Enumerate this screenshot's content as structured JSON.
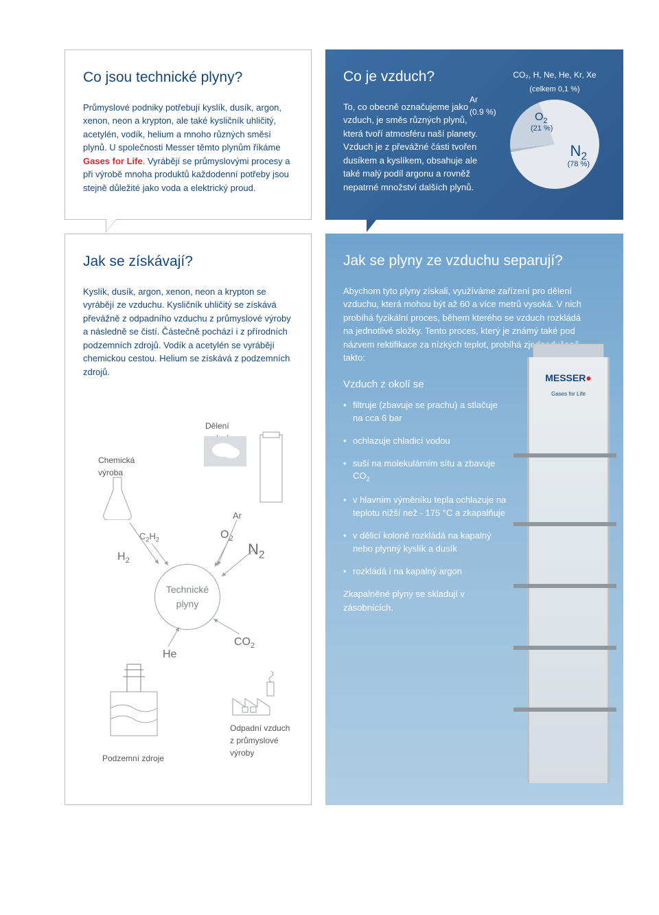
{
  "colors": {
    "brand_blue": "#14467a",
    "brand_red": "#d22a2f",
    "blue_grad_a": "#3b6ea3",
    "blue_grad_b": "#2e5a8c",
    "sky_a": "#6fa3cf",
    "sky_b": "#b0cde3",
    "border": "#b9bec2",
    "text_gray": "#555"
  },
  "box1": {
    "title": "Co jsou technické plyny?",
    "body_a": "Průmyslové podniky potřebují kyslík, dusík, argon, xenon, neon a krypton, ale také kysličník uhličitý, acetylén, vodík, helium a mnoho různých směsí plynů. U společnosti Messer těmto plynům říkáme ",
    "highlight": "Gases for Life",
    "body_b": ". Vyrábějí se průmyslovými procesy a při výrobě mnoha produktů každodenní potřeby jsou stejně důležité jako voda a elektrický proud."
  },
  "box2": {
    "title": "Co je vzduch?",
    "body": "To, co obecně označujeme jako vzduch, je směs různých plynů, která tvoří atmosféru naší planety. Vzduch je z převážné části tvořen dusíkem a kyslíkem, obsahuje ale také malý podíl argonu a rovněž nepatrné množství dalších plynů.",
    "pie": {
      "caption_top": "CO₂, H, Ne, He, Kr, Xe",
      "caption_sub": "(celkem 0,1 %)",
      "ar_label": "Ar",
      "ar_pct": "(0.9 %)",
      "slices": [
        {
          "label": "N₂",
          "pct_label": "(78 %)",
          "value": 78,
          "color": "#e6eaef"
        },
        {
          "label": "O₂",
          "pct_label": "(21 %)",
          "value": 21,
          "color": "#c9d3df"
        },
        {
          "label": "Ar",
          "pct_label": "(0.9 %)",
          "value": 0.9,
          "color": "#aebccb"
        },
        {
          "label": "other",
          "pct_label": "(0.1 %)",
          "value": 0.1,
          "color": "#8fa3b8"
        }
      ]
    }
  },
  "box3": {
    "title": "Jak se získávají?",
    "body": "Kyslík, dusík, argon, xenon, neon a krypton se vyrábějí ze vzduchu. Kysličník uhličitý se získává převážně z odpadního vzduchu z průmyslové výroby a následně se čistí. Částečně pochází i z přírodních podzemních zdrojů. Vodík a acetylén se vyrábějí chemickou cestou. Helium se získává z podzemních zdrojů.",
    "diagram": {
      "center": "Technické plyny",
      "air_split": "Dělení vzduchu",
      "chem": "Chemická výroba",
      "underground": "Podzemní zdroje",
      "waste_air": "Odpadní vzduch z průmyslové výroby",
      "formulas": {
        "h2": "H₂",
        "c2h2": "C₂H₂",
        "o2": "O₂",
        "n2": "N₂",
        "ar": "Ar",
        "he": "He",
        "co2": "CO₂"
      }
    }
  },
  "box4": {
    "title": "Jak se plyny ze vzduchu separují?",
    "intro": "Abychom tyto plyny získali, využíváme zařízení pro dělení vzduchu, která mohou být až 60 a více metrů vysoká. V nich probíhá fyzikální proces, během kterého se vzduch rozkládá na jednotlivé složky. Tento proces, který je známý také pod názvem rektifikace za nízkých teplot, probíhá zjednodušeně takto:",
    "subhead": "Vzduch z okolí se",
    "steps": [
      "filtruje (zbavuje se prachu) a stlačuje na cca 6 bar",
      "ochlazuje chladicí vodou",
      "suší na molekulárním sítu a zbavuje CO₂",
      "v hlavním výměníku tepla ochlazuje na teplotu nižší než - 175 °C a zkapalňuje",
      "v dělicí koloně rozkládá na kapalný nebo plynný kyslík a dusík",
      "rozkládá i na kapalný argon"
    ],
    "outro": "Zkapalněné plyny se skladují v zásobnících.",
    "logo": {
      "name": "MESSER",
      "tag": "Gases for Life"
    }
  }
}
